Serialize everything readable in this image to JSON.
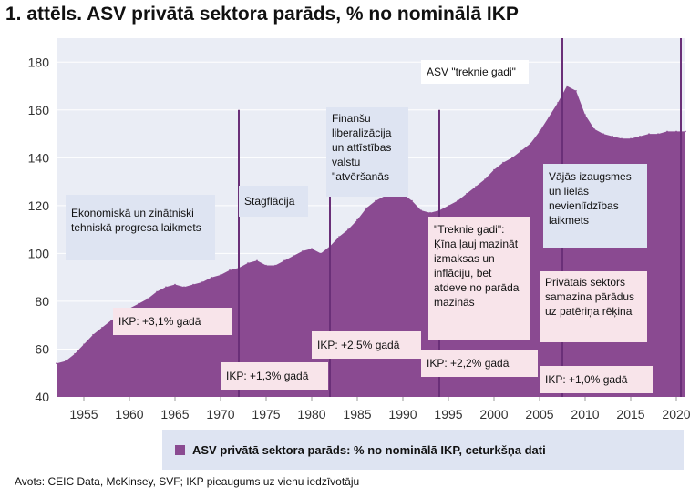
{
  "title": "1. attēls. ASV privātā sektora parāds, % no nominālā IKP",
  "source": "Avots: CEIC Data, McKinsey, SVF; IKP pieaugums uz vienu iedzīvotāju",
  "colors": {
    "area": "#8a4a91",
    "plot_background": "#eaedf5",
    "annotation_blue": "#dee4f2",
    "annotation_pink": "#f8e4ea",
    "divider": "#6a2f78"
  },
  "annotations": {
    "era1": "Ekonomiskā un zinātniski tehniskā progresa laikmets",
    "era2": "Stagflācija",
    "era3": "Finanšu liberalizācija un attīstības valstu \"atvēršanās",
    "era4_title": "ASV \"treknie gadi\"",
    "era4": "\"Treknie gadi\": Ķīna ļauj mazināt izmaksas un inflāciju, bet atdeve no parāda mazinās",
    "era5": "Vājās izaugsmes un lielās nevienlīdzības laikmets",
    "era5b": "Privātais sektors samazina pārādus uz patēriņa rēķina",
    "gdp1": "IKP: +3,1% gadā",
    "gdp2": "IKP: +1,3% gadā",
    "gdp3": "IKP: +2,5% gadā",
    "gdp4": "IKP: +2,2% gadā",
    "gdp5": "IKP: +1,0% gadā"
  },
  "chart_data": {
    "type": "area",
    "title": "1. attēls. ASV privātā sektora parāds, % no nominālā IKP",
    "xlabel": "",
    "ylabel": "",
    "xlim": [
      1952,
      2021
    ],
    "ylim": [
      40,
      190
    ],
    "x_ticks": [
      1955,
      1960,
      1965,
      1970,
      1975,
      1980,
      1985,
      1990,
      1995,
      2000,
      2005,
      2010,
      2015,
      2020
    ],
    "y_ticks": [
      40,
      60,
      80,
      100,
      120,
      140,
      160,
      180
    ],
    "grid": true,
    "legend_position": "bottom",
    "period_dividers": [
      {
        "x": 1972,
        "top": 160
      },
      {
        "x": 1982,
        "top": 160
      },
      {
        "x": 1994,
        "top": 160
      },
      {
        "x": 2007.5,
        "top": 190
      },
      {
        "x": 2020.5,
        "top": 190
      }
    ],
    "series": [
      {
        "name": "ASV privātā sektora parāds: % no nominālā IKP, ceturkšņa dati",
        "x": [
          1952,
          1953,
          1954,
          1955,
          1956,
          1957,
          1958,
          1959,
          1960,
          1961,
          1962,
          1963,
          1964,
          1965,
          1966,
          1967,
          1968,
          1969,
          1970,
          1971,
          1972,
          1973,
          1974,
          1975,
          1976,
          1977,
          1978,
          1979,
          1980,
          1981,
          1982,
          1983,
          1984,
          1985,
          1986,
          1987,
          1988,
          1989,
          1990,
          1991,
          1992,
          1993,
          1994,
          1995,
          1996,
          1997,
          1998,
          1999,
          2000,
          2001,
          2002,
          2003,
          2004,
          2005,
          2006,
          2007,
          2008,
          2009,
          2010,
          2011,
          2012,
          2013,
          2014,
          2015,
          2016,
          2017,
          2018,
          2019,
          2020,
          2021
        ],
        "values": [
          54,
          55,
          58,
          62,
          66,
          69,
          72,
          74,
          77,
          79,
          81,
          84,
          86,
          87,
          86,
          87,
          88,
          90,
          91,
          93,
          94,
          96,
          97,
          95,
          95,
          97,
          99,
          101,
          102,
          100,
          103,
          107,
          110,
          114,
          119,
          122,
          124,
          125,
          125,
          122,
          118,
          117,
          118,
          120,
          122,
          125,
          128,
          131,
          135,
          138,
          140,
          143,
          146,
          151,
          157,
          163,
          170,
          168,
          158,
          152,
          150,
          149,
          148,
          148,
          149,
          150,
          150,
          151,
          151,
          151
        ]
      }
    ]
  },
  "legend": {
    "label": "ASV privātā sektora parāds: % no nominālā IKP, ceturkšņa dati"
  }
}
